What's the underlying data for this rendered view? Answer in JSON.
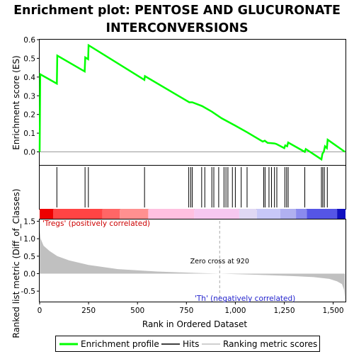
{
  "chart_data": {
    "type": "line",
    "title_line1": "Enrichment plot: PENTOSE AND GLUCURONATE",
    "title_line2": "INTERCONVERSIONS",
    "es_panel": {
      "ylabel": "Enrichment score (ES)",
      "ylim": [
        -0.07,
        0.6
      ],
      "yticks": [
        0.0,
        0.1,
        0.2,
        0.3,
        0.4,
        0.5,
        0.6
      ],
      "ytick_labels": [
        "0.0",
        "0.1",
        "0.2",
        "0.3",
        "0.4",
        "0.5",
        "0.6"
      ],
      "line_color": "#00ff00",
      "series_name": "Enrichment profile",
      "x": [
        0,
        3,
        88,
        90,
        230,
        233,
        248,
        250,
        535,
        538,
        765,
        780,
        830,
        880,
        930,
        1000,
        1060,
        1140,
        1150,
        1165,
        1200,
        1210,
        1250,
        1255,
        1265,
        1270,
        1355,
        1360,
        1440,
        1445,
        1452,
        1458,
        1468,
        1472,
        1560
      ],
      "y": [
        0.0,
        0.415,
        0.365,
        0.515,
        0.43,
        0.505,
        0.495,
        0.57,
        0.385,
        0.405,
        0.265,
        0.265,
        0.245,
        0.215,
        0.18,
        0.14,
        0.105,
        0.055,
        0.06,
        0.048,
        0.045,
        0.042,
        0.02,
        0.035,
        0.03,
        0.05,
        0.0,
        0.015,
        -0.04,
        -0.01,
        0.0,
        0.03,
        0.02,
        0.065,
        0.0
      ]
    },
    "hits": {
      "positions": [
        88,
        232,
        249,
        536,
        762,
        772,
        780,
        828,
        844,
        880,
        890,
        915,
        942,
        952,
        962,
        985,
        1000,
        1030,
        1060,
        1145,
        1152,
        1172,
        1185,
        1200,
        1212,
        1253,
        1262,
        1270,
        1355,
        1440,
        1447,
        1455,
        1470
      ]
    },
    "rank_panel": {
      "ylabel": "Ranked list metric (Diff_of_Classes)",
      "xlabel": "Rank in Ordered Dataset",
      "ylim": [
        -0.8,
        1.55
      ],
      "yticks": [
        -0.5,
        0.0,
        0.5,
        1.0,
        1.5
      ],
      "ytick_labels": [
        "-0.5",
        "0.0",
        "0.5",
        "1.0",
        "1.5"
      ],
      "xlim": [
        0,
        1563
      ],
      "xticks": [
        0,
        250,
        500,
        750,
        1000,
        1250,
        1500
      ],
      "xtick_labels": [
        "0",
        "250",
        "500",
        "750",
        "1,000",
        "1,250",
        "1,500"
      ],
      "fill_color": "#c0c0c0",
      "profile_x": [
        0,
        5,
        20,
        50,
        90,
        150,
        250,
        400,
        600,
        800,
        920,
        1100,
        1300,
        1400,
        1480,
        1520,
        1545,
        1555,
        1560
      ],
      "profile_y": [
        1.25,
        1.0,
        0.8,
        0.65,
        0.5,
        0.38,
        0.25,
        0.13,
        0.06,
        0.02,
        0.0,
        -0.03,
        -0.07,
        -0.1,
        -0.15,
        -0.22,
        -0.3,
        -0.45,
        -0.75
      ],
      "zero_cross_label": "Zero cross at 920",
      "zero_cross": 920,
      "pos_label": "'Tregs' (positively correlated)",
      "neg_label": "'Th' (negatively correlated)"
    },
    "color_bar": {
      "segments": [
        {
          "from": 0,
          "to": 70,
          "color": "#ee0000"
        },
        {
          "from": 70,
          "to": 320,
          "color": "#ff4444"
        },
        {
          "from": 320,
          "to": 410,
          "color": "#ff6666"
        },
        {
          "from": 410,
          "to": 555,
          "color": "#ff9090"
        },
        {
          "from": 555,
          "to": 790,
          "color": "#ffc0e0"
        },
        {
          "from": 790,
          "to": 1020,
          "color": "#f6c8f0"
        },
        {
          "from": 1020,
          "to": 1110,
          "color": "#e0d8f4"
        },
        {
          "from": 1110,
          "to": 1230,
          "color": "#c8c8f8"
        },
        {
          "from": 1230,
          "to": 1310,
          "color": "#b0b0f0"
        },
        {
          "from": 1310,
          "to": 1365,
          "color": "#8a8aee"
        },
        {
          "from": 1365,
          "to": 1520,
          "color": "#5555e6"
        },
        {
          "from": 1520,
          "to": 1563,
          "color": "#1010c0"
        }
      ]
    },
    "legend": [
      {
        "label": "Enrichment profile",
        "color": "#00ff00",
        "kind": "line"
      },
      {
        "label": "Hits",
        "color": "#000000",
        "kind": "line"
      },
      {
        "label": "Ranking metric scores",
        "color": "#c0c0c0",
        "kind": "line"
      }
    ]
  }
}
